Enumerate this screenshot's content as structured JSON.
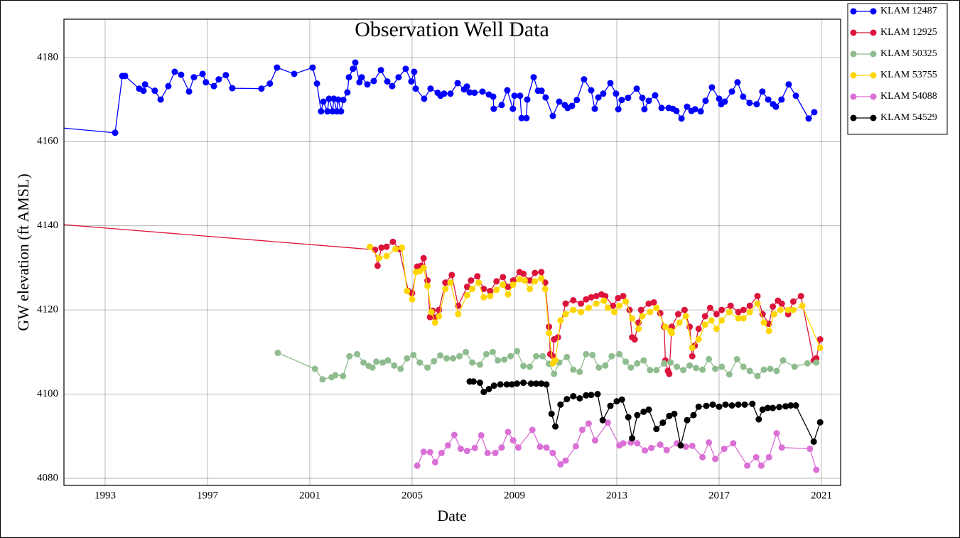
{
  "chart_data": {
    "type": "line",
    "title": "Observation Well Data",
    "x_label": "Date",
    "y_label": "GW elevation (ft AMSL)",
    "xlim": [
      1991.39,
      2021.75
    ],
    "ylim": [
      4078.3,
      4189.1
    ],
    "xticks": [
      1993,
      1997,
      2001,
      2005,
      2009,
      2013,
      2017,
      2021
    ],
    "yticks": [
      4080,
      4100,
      4120,
      4140,
      4160,
      4180
    ],
    "grid": true,
    "legend": "outside upper right",
    "series": [
      {
        "name": "KLAM 12487",
        "color": "#0000ff",
        "x": [
          1985,
          1993.39,
          1993.67,
          1993.78,
          1994.33,
          1994.5,
          1994.56,
          1994.94,
          1995.17,
          1995.47,
          1995.72,
          1995.97,
          1996.28,
          1996.47,
          1996.81,
          1996.94,
          1997.25,
          1997.44,
          1997.72,
          1997.97,
          1999.11,
          1999.44,
          1999.72,
          2000.39,
          2001.11,
          2001.28,
          2001.44,
          2001.53,
          2001.69,
          2001.75,
          2001.89,
          2001.94,
          2002.06,
          2002.11,
          2002.22,
          2002.31,
          2002.47,
          2002.53,
          2002.69,
          2002.78,
          2002.94,
          2003.03,
          2003.25,
          2003.5,
          2003.78,
          2004.03,
          2004.22,
          2004.47,
          2004.75,
          2004.97,
          2005.08,
          2005.14,
          2005.47,
          2005.72,
          2006.0,
          2006.11,
          2006.25,
          2006.5,
          2006.78,
          2007.03,
          2007.14,
          2007.25,
          2007.44,
          2007.75,
          2008.0,
          2008.17,
          2008.19,
          2008.5,
          2008.72,
          2008.94,
          2009.0,
          2009.22,
          2009.28,
          2009.47,
          2009.5,
          2009.75,
          2009.92,
          2010.06,
          2010.22,
          2010.5,
          2010.75,
          2010.97,
          2011.08,
          2011.25,
          2011.44,
          2011.72,
          2012.0,
          2012.14,
          2012.28,
          2012.47,
          2012.75,
          2012.97,
          2013.06,
          2013.19,
          2013.44,
          2013.78,
          2014.0,
          2014.08,
          2014.25,
          2014.5,
          2014.75,
          2015.03,
          2015.19,
          2015.33,
          2015.53,
          2015.75,
          2015.92,
          2016.06,
          2016.28,
          2016.47,
          2016.72,
          2017.0,
          2017.08,
          2017.22,
          2017.5,
          2017.72,
          2017.94,
          2018.19,
          2018.47,
          2018.69,
          2018.92,
          2019.11,
          2019.22,
          2019.44,
          2019.72,
          2020.0,
          2020.5,
          2020.72
        ],
        "values": [
          4166.8,
          4162.1,
          4175.6,
          4175.6,
          4172.6,
          4172.1,
          4173.6,
          4172.1,
          4170.0,
          4173.2,
          4176.6,
          4175.9,
          4171.9,
          4175.3,
          4176.1,
          4174.1,
          4173.2,
          4174.8,
          4175.8,
          4172.7,
          4172.6,
          4173.8,
          4177.6,
          4176.1,
          4177.6,
          4173.8,
          4167.2,
          4169.5,
          4167.2,
          4170.2,
          4167.2,
          4170.2,
          4167.2,
          4170.0,
          4167.2,
          4169.9,
          4171.7,
          4175.3,
          4177.3,
          4178.8,
          4174.1,
          4175.3,
          4173.6,
          4174.4,
          4177.0,
          4174.3,
          4173.2,
          4175.3,
          4177.3,
          4174.3,
          4176.6,
          4172.6,
          4170.2,
          4172.6,
          4171.6,
          4170.9,
          4171.4,
          4171.4,
          4173.9,
          4172.4,
          4173.1,
          4171.7,
          4171.6,
          4171.9,
          4171.2,
          4170.7,
          4167.8,
          4168.7,
          4172.2,
          4167.8,
          4170.9,
          4170.9,
          4165.6,
          4165.6,
          4170.0,
          4175.3,
          4172.1,
          4172.1,
          4170.5,
          4166.1,
          4169.5,
          4168.7,
          4168.0,
          4168.5,
          4169.9,
          4174.8,
          4172.2,
          4167.8,
          4170.5,
          4171.4,
          4173.9,
          4171.4,
          4167.7,
          4169.9,
          4170.4,
          4172.6,
          4170.4,
          4167.7,
          4169.7,
          4171.0,
          4168.0,
          4168.0,
          4167.8,
          4167.3,
          4165.5,
          4168.3,
          4167.3,
          4167.7,
          4167.2,
          4169.7,
          4172.9,
          4170.2,
          4168.9,
          4169.5,
          4171.9,
          4174.1,
          4170.7,
          4169.2,
          4168.9,
          4171.9,
          4170.0,
          4168.9,
          4168.3,
          4170.0,
          4173.6,
          4170.9,
          4165.5,
          4167.0
        ]
      },
      {
        "name": "KLAM 12925",
        "color": "#dc143c",
        "x": [
          1985,
          2003.55,
          2003.65,
          2003.8,
          2004.0,
          2004.25,
          2004.5,
          2004.85,
          2005.0,
          2005.2,
          2005.35,
          2005.45,
          2005.6,
          2005.7,
          2005.8,
          2005.9,
          2006.05,
          2006.3,
          2006.55,
          2006.8,
          2007.15,
          2007.3,
          2007.55,
          2007.8,
          2008.05,
          2008.3,
          2008.55,
          2008.75,
          2008.95,
          2009.2,
          2009.35,
          2009.6,
          2009.8,
          2010.05,
          2010.2,
          2010.35,
          2010.4,
          2010.5,
          2010.55,
          2010.7,
          2011.0,
          2011.3,
          2011.6,
          2011.8,
          2012.0,
          2012.2,
          2012.4,
          2012.55,
          2012.85,
          2013.05,
          2013.25,
          2013.5,
          2013.6,
          2013.7,
          2013.85,
          2013.95,
          2014.25,
          2014.45,
          2014.7,
          2014.85,
          2014.9,
          2015.0,
          2015.05,
          2015.15,
          2015.4,
          2015.65,
          2015.85,
          2015.95,
          2016.05,
          2016.2,
          2016.45,
          2016.65,
          2016.9,
          2017.1,
          2017.45,
          2017.75,
          2017.95,
          2018.2,
          2018.5,
          2018.7,
          2018.95,
          2019.1,
          2019.3,
          2019.45,
          2019.7,
          2019.9,
          2020.2,
          2020.7,
          2020.8,
          2020.95
        ],
        "values": [
          4143.4,
          4134.3,
          4130.5,
          4134.8,
          4135.0,
          4136.2,
          4134.5,
          4124.5,
          4124.0,
          4130.3,
          4130.5,
          4132.3,
          4127.0,
          4118.3,
          4119.8,
          4118.2,
          4120.0,
          4126.5,
          4128.3,
          4121.0,
          4125.5,
          4127.0,
          4128.0,
          4125.0,
          4124.5,
          4126.8,
          4127.8,
          4125.5,
          4127.0,
          4129.0,
          4128.6,
          4127.0,
          4128.8,
          4129.0,
          4126.5,
          4116.0,
          4109.5,
          4109.0,
          4113.0,
          4113.5,
          4121.5,
          4122.3,
          4121.5,
          4122.5,
          4123.0,
          4123.3,
          4123.7,
          4123.3,
          4121.0,
          4122.8,
          4123.3,
          4120.0,
          4113.5,
          4113.0,
          4117.0,
          4120.0,
          4121.5,
          4121.8,
          4119.2,
          4116.0,
          4108.0,
          4105.5,
          4104.8,
          4116.0,
          4119.0,
          4120.0,
          4116.0,
          4109.0,
          4111.5,
          4115.5,
          4118.5,
          4120.5,
          4119.0,
          4120.0,
          4121.0,
          4119.5,
          4120.0,
          4121.0,
          4123.3,
          4119.0,
          4116.7,
          4120.8,
          4122.2,
          4121.5,
          4119.0,
          4122.0,
          4123.3,
          4108.0,
          4108.5,
          4113.0
        ]
      },
      {
        "name": "KLAM 50325",
        "color": "#8fbc8f",
        "x": [
          1999.75,
          2001.2,
          2001.5,
          2001.85,
          2002.0,
          2002.3,
          2002.55,
          2002.85,
          2003.1,
          2003.3,
          2003.45,
          2003.6,
          2003.85,
          2004.05,
          2004.3,
          2004.55,
          2004.8,
          2005.05,
          2005.3,
          2005.6,
          2005.85,
          2006.1,
          2006.35,
          2006.6,
          2006.85,
          2007.1,
          2007.35,
          2007.65,
          2007.9,
          2008.15,
          2008.35,
          2008.6,
          2008.85,
          2009.1,
          2009.35,
          2009.6,
          2009.85,
          2010.1,
          2010.35,
          2010.55,
          2010.75,
          2011.05,
          2011.3,
          2011.55,
          2011.8,
          2012.05,
          2012.3,
          2012.55,
          2012.8,
          2013.1,
          2013.35,
          2013.55,
          2013.8,
          2014.05,
          2014.3,
          2014.55,
          2014.85,
          2015.1,
          2015.35,
          2015.6,
          2015.85,
          2016.1,
          2016.35,
          2016.6,
          2016.85,
          2017.1,
          2017.4,
          2017.7,
          2017.95,
          2018.2,
          2018.5,
          2018.75,
          2019.0,
          2019.25,
          2019.5,
          2019.95,
          2020.45,
          2020.8
        ],
        "values": [
          4109.8,
          4106.0,
          4103.5,
          4104.0,
          4104.5,
          4104.3,
          4109.0,
          4109.5,
          4107.5,
          4106.7,
          4106.3,
          4107.7,
          4107.5,
          4108.0,
          4106.8,
          4106.0,
          4108.5,
          4109.3,
          4107.5,
          4106.3,
          4107.8,
          4109.2,
          4108.5,
          4108.5,
          4109.0,
          4110.0,
          4107.5,
          4107.0,
          4109.5,
          4110.0,
          4108.0,
          4108.2,
          4109.0,
          4110.2,
          4106.7,
          4106.5,
          4109.0,
          4109.0,
          4107.2,
          4104.8,
          4107.5,
          4108.8,
          4105.8,
          4105.3,
          4109.5,
          4109.3,
          4106.3,
          4106.8,
          4109.0,
          4109.5,
          4107.7,
          4106.3,
          4107.3,
          4108.0,
          4105.7,
          4105.7,
          4107.3,
          4107.5,
          4106.5,
          4105.7,
          4106.8,
          4106.2,
          4105.8,
          4108.3,
          4106.0,
          4106.5,
          4104.7,
          4108.3,
          4106.5,
          4105.5,
          4104.3,
          4105.8,
          4106.0,
          4105.5,
          4108.0,
          4106.5,
          4107.3,
          4107.5
        ]
      },
      {
        "name": "KLAM 53755",
        "color": "#ffd700",
        "x": [
          2003.35,
          2003.7,
          2004.0,
          2004.35,
          2004.6,
          2004.8,
          2005.0,
          2005.15,
          2005.3,
          2005.45,
          2005.6,
          2005.75,
          2005.9,
          2006.05,
          2006.3,
          2006.5,
          2006.8,
          2007.15,
          2007.35,
          2007.6,
          2007.8,
          2008.05,
          2008.3,
          2008.55,
          2008.75,
          2008.95,
          2009.2,
          2009.4,
          2009.6,
          2009.8,
          2010.05,
          2010.2,
          2010.35,
          2010.5,
          2010.6,
          2010.8,
          2011.0,
          2011.3,
          2011.6,
          2011.9,
          2012.2,
          2012.5,
          2012.65,
          2012.9,
          2013.1,
          2013.35,
          2013.6,
          2013.85,
          2014.0,
          2014.3,
          2014.55,
          2014.9,
          2015.1,
          2015.15,
          2015.45,
          2015.7,
          2015.95,
          2016.2,
          2016.45,
          2016.7,
          2016.9,
          2017.1,
          2017.4,
          2017.75,
          2017.95,
          2018.2,
          2018.5,
          2018.75,
          2018.95,
          2019.15,
          2019.4,
          2019.7,
          2019.9,
          2020.25,
          2020.95
        ],
        "values": [
          4135.0,
          4132.3,
          4132.8,
          4134.5,
          4134.8,
          4124.5,
          4122.5,
          4129.0,
          4129.2,
          4130.0,
          4125.7,
          4119.5,
          4117.0,
          4118.5,
          4125.0,
          4126.5,
          4119.0,
          4123.5,
          4125.0,
          4126.5,
          4123.0,
          4123.3,
          4124.8,
          4126.0,
          4123.7,
          4126.0,
          4127.3,
          4127.0,
          4125.0,
          4126.8,
          4127.5,
          4125.0,
          4114.5,
          4107.3,
          4108.0,
          4117.5,
          4119.0,
          4120.0,
          4119.5,
          4120.5,
          4121.5,
          4122.2,
          4120.5,
          4119.5,
          4121.0,
          4122.0,
          4118.0,
          4115.5,
          4118.5,
          4119.5,
          4120.5,
          4116.0,
          4115.0,
          4114.5,
          4117.0,
          4118.5,
          4111.0,
          4113.0,
          4116.5,
          4117.5,
          4115.5,
          4117.5,
          4119.5,
          4118.0,
          4118.0,
          4119.5,
          4121.5,
          4117.0,
          4115.0,
          4119.0,
          4120.0,
          4120.0,
          4120.0,
          4121.0,
          4111.0
        ]
      },
      {
        "name": "KLAM 54088",
        "color": "#da70d6",
        "x": [
          2005.2,
          2005.45,
          2005.7,
          2005.9,
          2006.15,
          2006.4,
          2006.65,
          2006.9,
          2007.15,
          2007.45,
          2007.7,
          2007.95,
          2008.25,
          2008.5,
          2008.75,
          2008.95,
          2009.15,
          2009.7,
          2010.0,
          2010.25,
          2010.5,
          2010.8,
          2011.0,
          2011.4,
          2011.65,
          2011.9,
          2012.15,
          2012.65,
          2013.1,
          2013.25,
          2013.55,
          2013.8,
          2014.1,
          2014.35,
          2014.7,
          2014.95,
          2015.35,
          2015.7,
          2015.95,
          2016.35,
          2016.6,
          2016.85,
          2017.2,
          2017.55,
          2018.1,
          2018.45,
          2018.65,
          2018.95,
          2019.25,
          2019.45,
          2020.55,
          2020.8
        ],
        "values": [
          4083.0,
          4086.3,
          4086.2,
          4083.8,
          4086.0,
          4087.8,
          4090.3,
          4087.0,
          4086.5,
          4087.2,
          4090.2,
          4086.0,
          4086.0,
          4087.3,
          4091.0,
          4089.0,
          4087.3,
          4091.5,
          4087.5,
          4087.3,
          4086.0,
          4083.3,
          4084.2,
          4087.6,
          4091.5,
          4093.0,
          4089.0,
          4093.2,
          4087.8,
          4088.3,
          4088.5,
          4088.3,
          4086.6,
          4087.2,
          4088.0,
          4086.7,
          4088.3,
          4087.5,
          4087.7,
          4085.0,
          4088.5,
          4084.6,
          4087.0,
          4088.3,
          4083.0,
          4085.0,
          4083.0,
          4085.0,
          4090.7,
          4087.3,
          4087.0,
          4082.0
        ]
      },
      {
        "name": "KLAM 54529",
        "color": "#000000",
        "x": [
          2007.25,
          2007.4,
          2007.65,
          2007.8,
          2008.0,
          2008.2,
          2008.45,
          2008.7,
          2008.9,
          2009.1,
          2009.35,
          2009.65,
          2009.85,
          2010.05,
          2010.25,
          2010.45,
          2010.6,
          2010.8,
          2011.05,
          2011.3,
          2011.55,
          2011.8,
          2012.0,
          2012.25,
          2012.45,
          2012.75,
          2013.0,
          2013.2,
          2013.45,
          2013.6,
          2013.8,
          2014.05,
          2014.25,
          2014.55,
          2014.8,
          2015.05,
          2015.25,
          2015.5,
          2015.75,
          2016.0,
          2016.2,
          2016.5,
          2016.75,
          2017.0,
          2017.25,
          2017.5,
          2017.75,
          2018.0,
          2018.3,
          2018.55,
          2018.7,
          2018.9,
          2019.1,
          2019.35,
          2019.6,
          2019.8,
          2020.0,
          2020.7,
          2020.95
        ],
        "values": [
          4103.0,
          4103.0,
          4102.7,
          4100.5,
          4101.2,
          4102.0,
          4102.3,
          4102.3,
          4102.3,
          4102.5,
          4102.7,
          4102.5,
          4102.5,
          4102.5,
          4102.3,
          4095.3,
          4092.3,
          4097.5,
          4098.8,
          4099.5,
          4099.0,
          4099.7,
          4099.8,
          4100.0,
          4093.8,
          4097.2,
          4098.3,
          4098.7,
          4094.5,
          4089.5,
          4095.0,
          4095.8,
          4096.3,
          4091.7,
          4093.2,
          4094.8,
          4095.3,
          4087.8,
          4093.8,
          4095.0,
          4097.0,
          4097.2,
          4097.5,
          4097.0,
          4097.5,
          4097.3,
          4097.5,
          4097.5,
          4097.7,
          4094.0,
          4096.3,
          4096.7,
          4096.7,
          4096.9,
          4097.1,
          4097.3,
          4097.3,
          4088.7,
          4093.3
        ]
      }
    ]
  }
}
